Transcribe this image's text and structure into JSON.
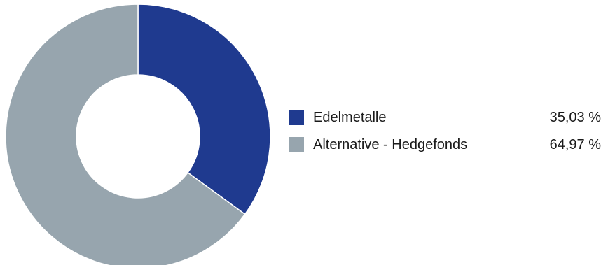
{
  "chart_data": {
    "type": "pie",
    "variant": "donut",
    "title": "",
    "legend_placement": "right",
    "series": [
      {
        "name": "Edelmetalle",
        "value": 35.03,
        "value_label": "35,03 %",
        "color": "#1f3a8f"
      },
      {
        "name": "Alternative - Hedgefonds",
        "value": 64.97,
        "value_label": "64,97 %",
        "color": "#97a5ae"
      }
    ]
  }
}
